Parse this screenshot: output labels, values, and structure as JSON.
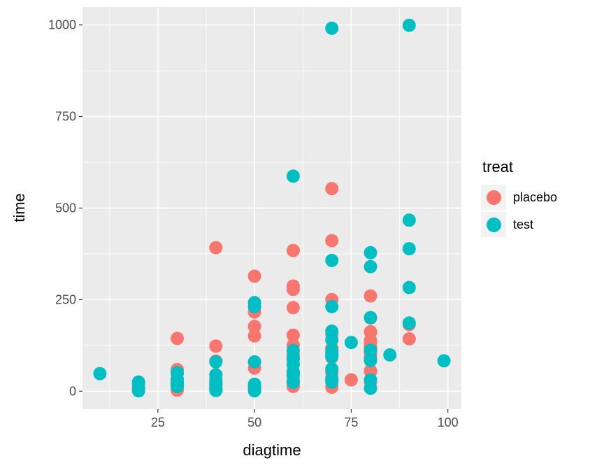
{
  "chart_data": {
    "type": "scatter",
    "title": "",
    "xlabel": "diagtime",
    "ylabel": "time",
    "legend_title": "treat",
    "legend_position": "right",
    "grid": true,
    "panel_background": "#EBEBEB",
    "grid_color": "#FFFFFF",
    "tick_color": "#333333",
    "tick_label_color": "#4D4D4D",
    "point_radius": 9.5,
    "xlim": [
      5.5,
      103.5
    ],
    "ylim": [
      -49,
      1049
    ],
    "x_ticks": [
      25,
      50,
      75,
      100
    ],
    "y_ticks": [
      0,
      250,
      500,
      750,
      1000
    ],
    "x_minor_ticks": [
      12.5,
      37.5,
      62.5,
      87.5
    ],
    "y_minor_ticks": [
      125,
      375,
      625,
      875
    ],
    "series": [
      {
        "name": "placebo",
        "color": "#F8766D",
        "points": [
          [
            60,
            72
          ],
          [
            70,
            411
          ],
          [
            60,
            228
          ],
          [
            60,
            126
          ],
          [
            70,
            118
          ],
          [
            20,
            10
          ],
          [
            40,
            82
          ],
          [
            80,
            110
          ],
          [
            50,
            314
          ],
          [
            70,
            100
          ],
          [
            60,
            42
          ],
          [
            40,
            8
          ],
          [
            30,
            144
          ],
          [
            80,
            25
          ],
          [
            70,
            11
          ],
          [
            60,
            30
          ],
          [
            60,
            384
          ],
          [
            40,
            4
          ],
          [
            80,
            54
          ],
          [
            60,
            13
          ],
          [
            40,
            123
          ],
          [
            60,
            97
          ],
          [
            60,
            153
          ],
          [
            30,
            59
          ],
          [
            80,
            117
          ],
          [
            30,
            16
          ],
          [
            50,
            151
          ],
          [
            60,
            22
          ],
          [
            80,
            56
          ],
          [
            40,
            21
          ],
          [
            20,
            18
          ],
          [
            80,
            139
          ],
          [
            30,
            20
          ],
          [
            75,
            31
          ],
          [
            70,
            52
          ],
          [
            60,
            287
          ],
          [
            30,
            18
          ],
          [
            60,
            51
          ],
          [
            80,
            122
          ],
          [
            60,
            27
          ],
          [
            70,
            54
          ],
          [
            50,
            7
          ],
          [
            50,
            63
          ],
          [
            40,
            392
          ],
          [
            40,
            10
          ],
          [
            20,
            8
          ],
          [
            70,
            92
          ],
          [
            40,
            35
          ],
          [
            80,
            117
          ],
          [
            80,
            132
          ],
          [
            50,
            12
          ],
          [
            80,
            162
          ],
          [
            30,
            3
          ],
          [
            80,
            95
          ],
          [
            50,
            177
          ],
          [
            80,
            162
          ],
          [
            50,
            216
          ],
          [
            70,
            553
          ],
          [
            60,
            278
          ],
          [
            40,
            12
          ],
          [
            80,
            260
          ],
          [
            80,
            200
          ],
          [
            70,
            156
          ],
          [
            90,
            182
          ],
          [
            90,
            143
          ],
          [
            80,
            105
          ],
          [
            80,
            103
          ],
          [
            70,
            250
          ],
          [
            60,
            100
          ]
        ]
      },
      {
        "name": "test",
        "color": "#00BFC4",
        "points": [
          [
            90,
            999
          ],
          [
            80,
            112
          ],
          [
            80,
            87
          ],
          [
            50,
            231
          ],
          [
            50,
            242
          ],
          [
            70,
            991
          ],
          [
            70,
            111
          ],
          [
            20,
            1
          ],
          [
            60,
            587
          ],
          [
            90,
            389
          ],
          [
            30,
            33
          ],
          [
            20,
            25
          ],
          [
            70,
            357
          ],
          [
            90,
            467
          ],
          [
            80,
            201
          ],
          [
            50,
            1
          ],
          [
            70,
            30
          ],
          [
            60,
            44
          ],
          [
            90,
            283
          ],
          [
            50,
            15
          ],
          [
            30,
            25
          ],
          [
            70,
            103
          ],
          [
            20,
            21
          ],
          [
            30,
            13
          ],
          [
            60,
            87
          ],
          [
            40,
            2
          ],
          [
            30,
            20
          ],
          [
            20,
            7
          ],
          [
            60,
            24
          ],
          [
            70,
            99
          ],
          [
            80,
            8
          ],
          [
            85,
            99
          ],
          [
            70,
            61
          ],
          [
            70,
            25
          ],
          [
            70,
            95
          ],
          [
            50,
            80
          ],
          [
            30,
            51
          ],
          [
            40,
            29
          ],
          [
            40,
            24
          ],
          [
            40,
            18
          ],
          [
            99,
            83
          ],
          [
            80,
            31
          ],
          [
            60,
            51
          ],
          [
            60,
            90
          ],
          [
            60,
            52
          ],
          [
            60,
            73
          ],
          [
            50,
            8
          ],
          [
            70,
            36
          ],
          [
            10,
            48
          ],
          [
            40,
            7
          ],
          [
            70,
            140
          ],
          [
            90,
            186
          ],
          [
            80,
            84
          ],
          [
            50,
            19
          ],
          [
            40,
            45
          ],
          [
            40,
            80
          ],
          [
            60,
            52
          ],
          [
            70,
            164
          ],
          [
            30,
            19
          ],
          [
            60,
            53
          ],
          [
            30,
            15
          ],
          [
            60,
            43
          ],
          [
            80,
            340
          ],
          [
            75,
            133
          ],
          [
            60,
            111
          ],
          [
            70,
            231
          ],
          [
            80,
            378
          ],
          [
            30,
            49
          ]
        ]
      }
    ]
  }
}
